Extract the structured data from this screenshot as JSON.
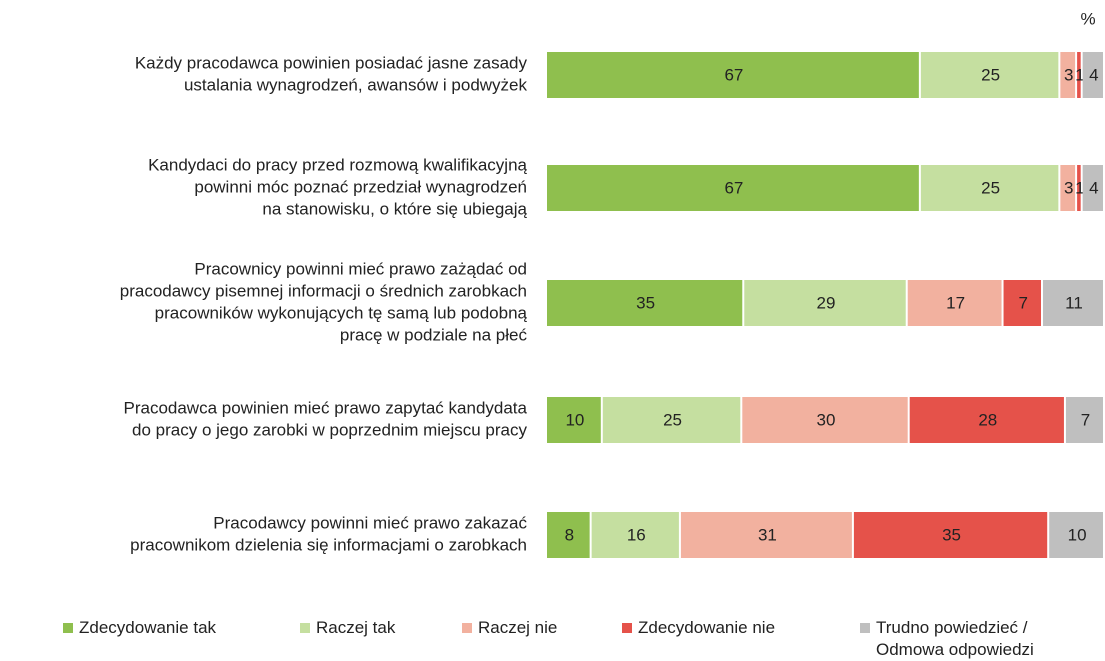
{
  "chart_data": {
    "type": "stacked-bar-horizontal",
    "unit": "%",
    "categories": [
      [
        "Każdy pracodawca powinien posiadać jasne zasady",
        "ustalania wynagrodzeń, awansów i podwyżek"
      ],
      [
        "Kandydaci do pracy przed rozmową kwalifikacyjną",
        "powinni móc poznać przedział wynagrodzeń",
        "na stanowisku, o które się ubiegają"
      ],
      [
        "Pracownicy powinni mieć prawo zażądać od",
        "pracodawcy pisemnej informacji o średnich zarobkach",
        "pracowników wykonujących tę samą lub podobną",
        "pracę w podziale na płeć"
      ],
      [
        "Pracodawca powinien mieć prawo zapytać kandydata",
        "do pracy o jego zarobki w poprzednim miejscu pracy"
      ],
      [
        "Pracodawcy powinni mieć prawo zakazać",
        "pracownikom dzielenia się informacjami o zarobkach"
      ]
    ],
    "series": [
      {
        "name": "Zdecydowanie tak",
        "color": "#8fbf4e",
        "values": [
          67,
          67,
          35,
          10,
          8
        ]
      },
      {
        "name": "Raczej tak",
        "color": "#c5dfa0",
        "values": [
          25,
          25,
          29,
          25,
          16
        ]
      },
      {
        "name": "Raczej nie",
        "color": "#f2b19f",
        "values": [
          3,
          3,
          17,
          30,
          31
        ]
      },
      {
        "name": "Zdecydowanie nie",
        "color": "#e5524a",
        "values": [
          1,
          1,
          7,
          28,
          35
        ]
      },
      {
        "name": "Trudno powiedzieć / Odmowa odpowiedzi",
        "color": "#bfbfbf",
        "values": [
          4,
          4,
          11,
          7,
          10
        ]
      }
    ]
  }
}
